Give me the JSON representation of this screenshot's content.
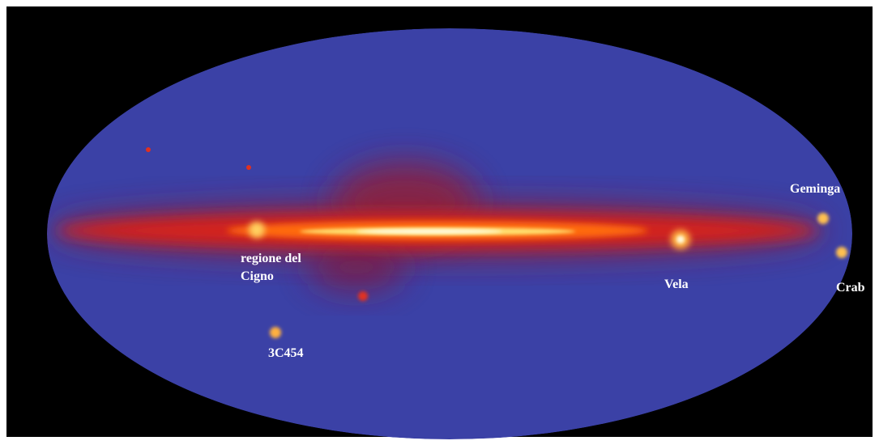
{
  "labels": [
    "Geminga",
    "regione del",
    "Cigno",
    "Vela",
    "Crab",
    "3C454"
  ]
}
